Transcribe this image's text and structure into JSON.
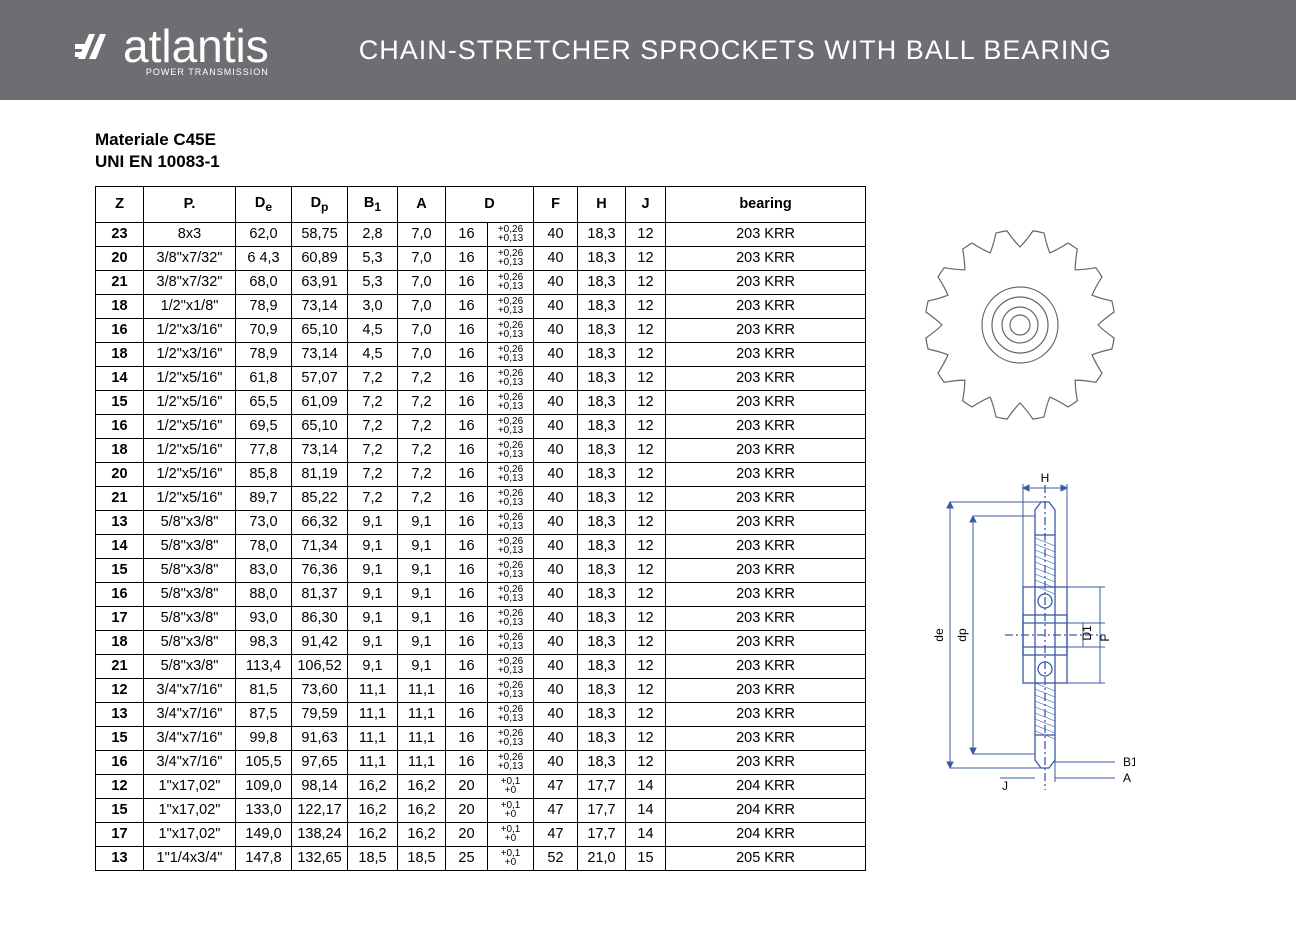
{
  "header": {
    "brand": "atlantis",
    "brand_subtitle": "POWER TRANSMISSION",
    "page_title": "CHAIN-STRETCHER SPROCKETS WITH BALL BEARING",
    "bg_color": "#6d6e71"
  },
  "material_label": "Materiale C45E",
  "standard_label": "UNI EN 10083-1",
  "table": {
    "columns": [
      "Z",
      "P.",
      "De",
      "Dp",
      "B1",
      "A",
      "D_num",
      "D_tol_top",
      "D_tol_bot",
      "F",
      "H",
      "J",
      "bearing"
    ],
    "header_de": "D",
    "header_de_sub": "e",
    "header_dp": "D",
    "header_dp_sub": "p",
    "header_b1": "B",
    "header_b1_sub": "1",
    "rows": [
      {
        "Z": "23",
        "P": "8x3",
        "De": "62,0",
        "Dp": "58,75",
        "B1": "2,8",
        "A": "7,0",
        "Dn": "16",
        "Dt1": "+0,26",
        "Dt2": "+0,13",
        "F": "40",
        "H": "18,3",
        "J": "12",
        "bearing": "203 KRR"
      },
      {
        "Z": "20",
        "P": "3/8\"x7/32\"",
        "De": "6 4,3",
        "Dp": "60,89",
        "B1": "5,3",
        "A": "7,0",
        "Dn": "16",
        "Dt1": "+0,26",
        "Dt2": "+0,13",
        "F": "40",
        "H": "18,3",
        "J": "12",
        "bearing": "203 KRR"
      },
      {
        "Z": "21",
        "P": "3/8\"x7/32\"",
        "De": "68,0",
        "Dp": "63,91",
        "B1": "5,3",
        "A": "7,0",
        "Dn": "16",
        "Dt1": "+0,26",
        "Dt2": "+0,13",
        "F": "40",
        "H": "18,3",
        "J": "12",
        "bearing": "203 KRR"
      },
      {
        "Z": "18",
        "P": "1/2\"x1/8\"",
        "De": "78,9",
        "Dp": "73,14",
        "B1": "3,0",
        "A": "7,0",
        "Dn": "16",
        "Dt1": "+0,26",
        "Dt2": "+0,13",
        "F": "40",
        "H": "18,3",
        "J": "12",
        "bearing": "203 KRR"
      },
      {
        "Z": "16",
        "P": "1/2\"x3/16\"",
        "De": "70,9",
        "Dp": "65,10",
        "B1": "4,5",
        "A": "7,0",
        "Dn": "16",
        "Dt1": "+0,26",
        "Dt2": "+0,13",
        "F": "40",
        "H": "18,3",
        "J": "12",
        "bearing": "203 KRR"
      },
      {
        "Z": "18",
        "P": "1/2\"x3/16\"",
        "De": "78,9",
        "Dp": "73,14",
        "B1": "4,5",
        "A": "7,0",
        "Dn": "16",
        "Dt1": "+0,26",
        "Dt2": "+0,13",
        "F": "40",
        "H": "18,3",
        "J": "12",
        "bearing": "203 KRR"
      },
      {
        "Z": "14",
        "P": "1/2\"x5/16\"",
        "De": "61,8",
        "Dp": "57,07",
        "B1": "7,2",
        "A": "7,2",
        "Dn": "16",
        "Dt1": "+0,26",
        "Dt2": "+0,13",
        "F": "40",
        "H": "18,3",
        "J": "12",
        "bearing": "203 KRR"
      },
      {
        "Z": "15",
        "P": "1/2\"x5/16\"",
        "De": "65,5",
        "Dp": "61,09",
        "B1": "7,2",
        "A": "7,2",
        "Dn": "16",
        "Dt1": "+0,26",
        "Dt2": "+0,13",
        "F": "40",
        "H": "18,3",
        "J": "12",
        "bearing": "203 KRR"
      },
      {
        "Z": "16",
        "P": "1/2\"x5/16\"",
        "De": "69,5",
        "Dp": "65,10",
        "B1": "7,2",
        "A": "7,2",
        "Dn": "16",
        "Dt1": "+0,26",
        "Dt2": "+0,13",
        "F": "40",
        "H": "18,3",
        "J": "12",
        "bearing": "203 KRR"
      },
      {
        "Z": "18",
        "P": "1/2\"x5/16\"",
        "De": "77,8",
        "Dp": "73,14",
        "B1": "7,2",
        "A": "7,2",
        "Dn": "16",
        "Dt1": "+0,26",
        "Dt2": "+0,13",
        "F": "40",
        "H": "18,3",
        "J": "12",
        "bearing": "203 KRR"
      },
      {
        "Z": "20",
        "P": "1/2\"x5/16\"",
        "De": "85,8",
        "Dp": "81,19",
        "B1": "7,2",
        "A": "7,2",
        "Dn": "16",
        "Dt1": "+0,26",
        "Dt2": "+0,13",
        "F": "40",
        "H": "18,3",
        "J": "12",
        "bearing": "203 KRR"
      },
      {
        "Z": "21",
        "P": "1/2\"x5/16\"",
        "De": "89,7",
        "Dp": "85,22",
        "B1": "7,2",
        "A": "7,2",
        "Dn": "16",
        "Dt1": "+0,26",
        "Dt2": "+0,13",
        "F": "40",
        "H": "18,3",
        "J": "12",
        "bearing": "203 KRR"
      },
      {
        "Z": "13",
        "P": "5/8\"x3/8\"",
        "De": "73,0",
        "Dp": "66,32",
        "B1": "9,1",
        "A": "9,1",
        "Dn": "16",
        "Dt1": "+0,26",
        "Dt2": "+0,13",
        "F": "40",
        "H": "18,3",
        "J": "12",
        "bearing": "203 KRR"
      },
      {
        "Z": "14",
        "P": "5/8\"x3/8\"",
        "De": "78,0",
        "Dp": "71,34",
        "B1": "9,1",
        "A": "9,1",
        "Dn": "16",
        "Dt1": "+0,26",
        "Dt2": "+0,13",
        "F": "40",
        "H": "18,3",
        "J": "12",
        "bearing": "203 KRR"
      },
      {
        "Z": "15",
        "P": "5/8\"x3/8\"",
        "De": "83,0",
        "Dp": "76,36",
        "B1": "9,1",
        "A": "9,1",
        "Dn": "16",
        "Dt1": "+0,26",
        "Dt2": "+0,13",
        "F": "40",
        "H": "18,3",
        "J": "12",
        "bearing": "203 KRR"
      },
      {
        "Z": "16",
        "P": "5/8\"x3/8\"",
        "De": "88,0",
        "Dp": "81,37",
        "B1": "9,1",
        "A": "9,1",
        "Dn": "16",
        "Dt1": "+0,26",
        "Dt2": "+0,13",
        "F": "40",
        "H": "18,3",
        "J": "12",
        "bearing": "203 KRR"
      },
      {
        "Z": "17",
        "P": "5/8\"x3/8\"",
        "De": "93,0",
        "Dp": "86,30",
        "B1": "9,1",
        "A": "9,1",
        "Dn": "16",
        "Dt1": "+0,26",
        "Dt2": "+0,13",
        "F": "40",
        "H": "18,3",
        "J": "12",
        "bearing": "203 KRR"
      },
      {
        "Z": "18",
        "P": "5/8\"x3/8\"",
        "De": "98,3",
        "Dp": "91,42",
        "B1": "9,1",
        "A": "9,1",
        "Dn": "16",
        "Dt1": "+0,26",
        "Dt2": "+0,13",
        "F": "40",
        "H": "18,3",
        "J": "12",
        "bearing": "203 KRR"
      },
      {
        "Z": "21",
        "P": "5/8\"x3/8\"",
        "De": "113,4",
        "Dp": "106,52",
        "B1": "9,1",
        "A": "9,1",
        "Dn": "16",
        "Dt1": "+0,26",
        "Dt2": "+0,13",
        "F": "40",
        "H": "18,3",
        "J": "12",
        "bearing": "203 KRR"
      },
      {
        "Z": "12",
        "P": "3/4\"x7/16\"",
        "De": "81,5",
        "Dp": "73,60",
        "B1": "11,1",
        "A": "11,1",
        "Dn": "16",
        "Dt1": "+0,26",
        "Dt2": "+0,13",
        "F": "40",
        "H": "18,3",
        "J": "12",
        "bearing": "203 KRR"
      },
      {
        "Z": "13",
        "P": "3/4\"x7/16\"",
        "De": "87,5",
        "Dp": "79,59",
        "B1": "11,1",
        "A": "11,1",
        "Dn": "16",
        "Dt1": "+0,26",
        "Dt2": "+0,13",
        "F": "40",
        "H": "18,3",
        "J": "12",
        "bearing": "203 KRR"
      },
      {
        "Z": "15",
        "P": "3/4\"x7/16\"",
        "De": "99,8",
        "Dp": "91,63",
        "B1": "11,1",
        "A": "11,1",
        "Dn": "16",
        "Dt1": "+0,26",
        "Dt2": "+0,13",
        "F": "40",
        "H": "18,3",
        "J": "12",
        "bearing": "203 KRR"
      },
      {
        "Z": "16",
        "P": "3/4\"x7/16\"",
        "De": "105,5",
        "Dp": "97,65",
        "B1": "11,1",
        "A": "11,1",
        "Dn": "16",
        "Dt1": "+0,26",
        "Dt2": "+0,13",
        "F": "40",
        "H": "18,3",
        "J": "12",
        "bearing": "203 KRR"
      },
      {
        "Z": "12",
        "P": "1\"x17,02\"",
        "De": "109,0",
        "Dp": "98,14",
        "B1": "16,2",
        "A": "16,2",
        "Dn": "20",
        "Dt1": "+0,1",
        "Dt2": "+0",
        "F": "47",
        "H": "17,7",
        "J": "14",
        "bearing": "204 KRR"
      },
      {
        "Z": "15",
        "P": "1\"x17,02\"",
        "De": "133,0",
        "Dp": "122,17",
        "B1": "16,2",
        "A": "16,2",
        "Dn": "20",
        "Dt1": "+0,1",
        "Dt2": "+0",
        "F": "47",
        "H": "17,7",
        "J": "14",
        "bearing": "204 KRR"
      },
      {
        "Z": "17",
        "P": "1\"x17,02\"",
        "De": "149,0",
        "Dp": "138,24",
        "B1": "16,2",
        "A": "16,2",
        "Dn": "20",
        "Dt1": "+0,1",
        "Dt2": "+0",
        "F": "47",
        "H": "17,7",
        "J": "14",
        "bearing": "204 KRR"
      },
      {
        "Z": "13",
        "P": "1\"1/4x3/4\"",
        "De": "147,8",
        "Dp": "132,65",
        "B1": "18,5",
        "A": "18,5",
        "Dn": "25",
        "Dt1": "+0,1",
        "Dt2": "+0",
        "F": "52",
        "H": "21,0",
        "J": "15",
        "bearing": "205 KRR"
      }
    ],
    "col_widths": {
      "Z": 48,
      "P": 92,
      "De": 56,
      "Dp": 56,
      "B1": 50,
      "A": 48,
      "Dn": 42,
      "Dt": 46,
      "F": 44,
      "H": 48,
      "J": 40,
      "bearing": 200
    }
  },
  "diagram": {
    "labels": {
      "de": "de",
      "dp": "dp",
      "H": "H",
      "D1": "D1",
      "F": "F",
      "J": "J",
      "B1": "B1",
      "A": "A"
    },
    "stroke": "#3b5ba5"
  },
  "sprocket": {
    "teeth": 16,
    "outer_r": 95,
    "root_r": 78,
    "hub_r1": 38,
    "hub_r2": 28,
    "hub_r3": 18,
    "hub_r4": 10,
    "stroke": "#666"
  }
}
